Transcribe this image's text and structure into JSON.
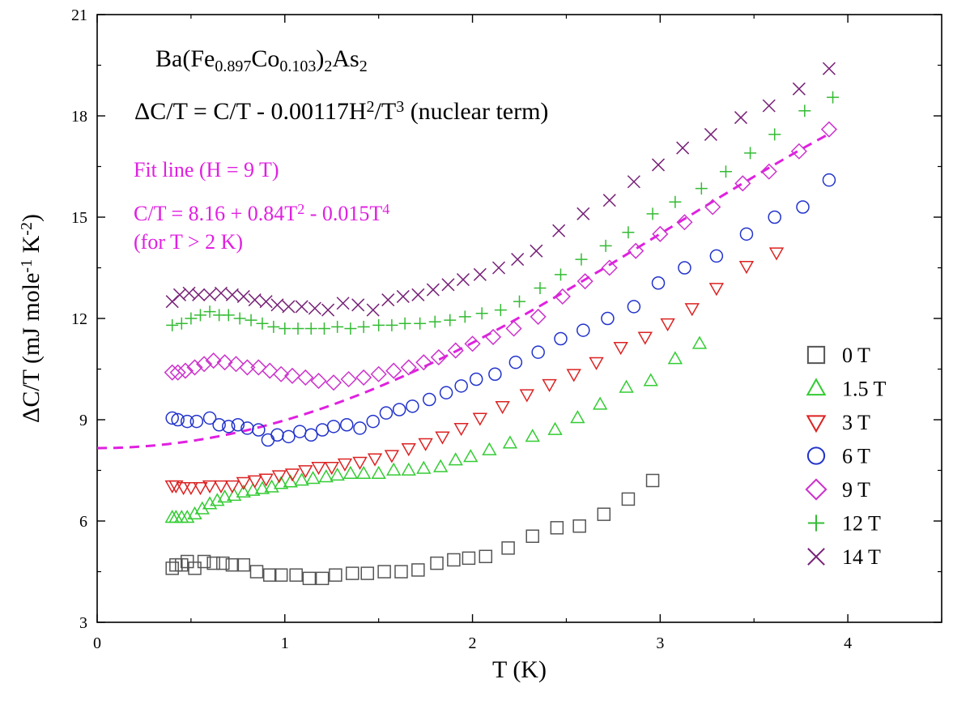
{
  "chart_data": {
    "type": "scatter",
    "title_lines": [
      {
        "parts": [
          {
            "t": "Ba(Fe"
          },
          {
            "t": "0.897",
            "sub": true
          },
          {
            "t": "Co"
          },
          {
            "t": "0.103",
            "sub": true
          },
          {
            "t": ")"
          },
          {
            "t": "2",
            "sub": true
          },
          {
            "t": "As"
          },
          {
            "t": "2",
            "sub": true
          }
        ]
      },
      {
        "parts": [
          {
            "t": "ΔC/T = C/T - 0.00117H"
          },
          {
            "t": "2",
            "sup": true
          },
          {
            "t": "/T"
          },
          {
            "t": "3",
            "sup": true
          },
          {
            "t": " (nuclear term)"
          }
        ]
      }
    ],
    "fit_annotation": {
      "color": "#e020e0",
      "lines": [
        {
          "parts": [
            {
              "t": "Fit line (H = 9 T)"
            }
          ]
        },
        {
          "parts": [
            {
              "t": "C/T = 8.16 + 0.84T"
            },
            {
              "t": "2",
              "sup": true
            },
            {
              "t": " - 0.015T"
            },
            {
              "t": "4",
              "sup": true
            }
          ]
        },
        {
          "parts": [
            {
              "t": "(for T > 2 K)"
            }
          ]
        }
      ]
    },
    "xlabel": "T (K)",
    "ylabel_parts": [
      {
        "t": "ΔC/T (mJ mole"
      },
      {
        "t": "-1",
        "sup": true
      },
      {
        "t": " K"
      },
      {
        "t": "-2",
        "sup": true
      },
      {
        "t": ")"
      }
    ],
    "xlim": [
      0,
      4.5
    ],
    "ylim": [
      3,
      21
    ],
    "xticks": [
      0,
      1,
      2,
      3,
      4
    ],
    "xtick_labels": [
      "0",
      "1",
      "2",
      "3",
      "4"
    ],
    "yticks": [
      3,
      6,
      9,
      12,
      15,
      18,
      21
    ],
    "ytick_labels": [
      "3",
      "6",
      "9",
      "12",
      "15",
      "18",
      "21"
    ],
    "grid": false,
    "legend_position": "right-middle",
    "fit_curve": {
      "a": 8.16,
      "b": 0.84,
      "c": -0.015,
      "x_range": [
        0,
        3.9
      ],
      "color": "#e020e0",
      "style": "dashed"
    },
    "series": [
      {
        "name": "0 T",
        "marker": "square",
        "color": "#555555",
        "points": [
          [
            0.4,
            4.6
          ],
          [
            0.42,
            4.7
          ],
          [
            0.45,
            4.7
          ],
          [
            0.48,
            4.8
          ],
          [
            0.52,
            4.6
          ],
          [
            0.57,
            4.8
          ],
          [
            0.62,
            4.75
          ],
          [
            0.67,
            4.75
          ],
          [
            0.72,
            4.7
          ],
          [
            0.78,
            4.7
          ],
          [
            0.85,
            4.5
          ],
          [
            0.92,
            4.4
          ],
          [
            0.98,
            4.4
          ],
          [
            1.06,
            4.4
          ],
          [
            1.13,
            4.3
          ],
          [
            1.2,
            4.3
          ],
          [
            1.27,
            4.4
          ],
          [
            1.36,
            4.45
          ],
          [
            1.44,
            4.45
          ],
          [
            1.53,
            4.5
          ],
          [
            1.62,
            4.5
          ],
          [
            1.71,
            4.55
          ],
          [
            1.81,
            4.75
          ],
          [
            1.9,
            4.85
          ],
          [
            1.98,
            4.9
          ],
          [
            2.07,
            4.95
          ],
          [
            2.19,
            5.2
          ],
          [
            2.32,
            5.55
          ],
          [
            2.45,
            5.8
          ],
          [
            2.57,
            5.85
          ],
          [
            2.7,
            6.2
          ],
          [
            2.83,
            6.65
          ],
          [
            2.96,
            7.2
          ]
        ]
      },
      {
        "name": "1.5 T",
        "marker": "triangle-up",
        "color": "#33cc33",
        "points": [
          [
            0.4,
            6.1
          ],
          [
            0.42,
            6.1
          ],
          [
            0.45,
            6.1
          ],
          [
            0.48,
            6.1
          ],
          [
            0.52,
            6.2
          ],
          [
            0.56,
            6.35
          ],
          [
            0.6,
            6.5
          ],
          [
            0.64,
            6.6
          ],
          [
            0.68,
            6.7
          ],
          [
            0.73,
            6.75
          ],
          [
            0.78,
            6.85
          ],
          [
            0.83,
            6.9
          ],
          [
            0.88,
            6.95
          ],
          [
            0.93,
            7.0
          ],
          [
            0.98,
            7.1
          ],
          [
            1.03,
            7.15
          ],
          [
            1.09,
            7.2
          ],
          [
            1.15,
            7.25
          ],
          [
            1.22,
            7.3
          ],
          [
            1.28,
            7.35
          ],
          [
            1.35,
            7.4
          ],
          [
            1.42,
            7.4
          ],
          [
            1.5,
            7.4
          ],
          [
            1.58,
            7.5
          ],
          [
            1.66,
            7.5
          ],
          [
            1.74,
            7.55
          ],
          [
            1.83,
            7.6
          ],
          [
            1.91,
            7.8
          ],
          [
            1.99,
            7.9
          ],
          [
            2.09,
            8.1
          ],
          [
            2.2,
            8.3
          ],
          [
            2.32,
            8.5
          ],
          [
            2.44,
            8.7
          ],
          [
            2.56,
            9.05
          ],
          [
            2.68,
            9.45
          ],
          [
            2.82,
            9.95
          ],
          [
            2.95,
            10.15
          ],
          [
            3.08,
            10.8
          ],
          [
            3.21,
            11.25
          ]
        ]
      },
      {
        "name": "3 T",
        "marker": "triangle-down",
        "color": "#dd2222",
        "points": [
          [
            0.4,
            7.05
          ],
          [
            0.42,
            7.05
          ],
          [
            0.46,
            7.0
          ],
          [
            0.5,
            7.0
          ],
          [
            0.55,
            7.0
          ],
          [
            0.6,
            7.05
          ],
          [
            0.66,
            7.05
          ],
          [
            0.72,
            7.05
          ],
          [
            0.78,
            7.15
          ],
          [
            0.84,
            7.2
          ],
          [
            0.9,
            7.25
          ],
          [
            0.97,
            7.35
          ],
          [
            1.04,
            7.4
          ],
          [
            1.11,
            7.5
          ],
          [
            1.18,
            7.6
          ],
          [
            1.25,
            7.6
          ],
          [
            1.32,
            7.7
          ],
          [
            1.4,
            7.75
          ],
          [
            1.48,
            7.85
          ],
          [
            1.57,
            7.95
          ],
          [
            1.66,
            8.15
          ],
          [
            1.75,
            8.3
          ],
          [
            1.84,
            8.5
          ],
          [
            1.94,
            8.75
          ],
          [
            2.04,
            9.05
          ],
          [
            2.16,
            9.4
          ],
          [
            2.29,
            9.75
          ],
          [
            2.41,
            10.05
          ],
          [
            2.54,
            10.35
          ],
          [
            2.66,
            10.7
          ],
          [
            2.79,
            11.15
          ],
          [
            2.92,
            11.45
          ],
          [
            3.04,
            11.85
          ],
          [
            3.17,
            12.3
          ],
          [
            3.3,
            12.9
          ],
          [
            3.46,
            13.55
          ],
          [
            3.62,
            13.95
          ]
        ]
      },
      {
        "name": "6 T",
        "marker": "circle",
        "color": "#2233cc",
        "points": [
          [
            0.4,
            9.05
          ],
          [
            0.43,
            9.0
          ],
          [
            0.48,
            8.95
          ],
          [
            0.53,
            8.95
          ],
          [
            0.6,
            9.05
          ],
          [
            0.65,
            8.85
          ],
          [
            0.7,
            8.8
          ],
          [
            0.75,
            8.85
          ],
          [
            0.8,
            8.75
          ],
          [
            0.86,
            8.7
          ],
          [
            0.91,
            8.4
          ],
          [
            0.96,
            8.55
          ],
          [
            1.02,
            8.5
          ],
          [
            1.08,
            8.65
          ],
          [
            1.14,
            8.55
          ],
          [
            1.2,
            8.7
          ],
          [
            1.26,
            8.8
          ],
          [
            1.33,
            8.85
          ],
          [
            1.4,
            8.75
          ],
          [
            1.47,
            8.95
          ],
          [
            1.54,
            9.2
          ],
          [
            1.61,
            9.3
          ],
          [
            1.68,
            9.4
          ],
          [
            1.77,
            9.6
          ],
          [
            1.86,
            9.8
          ],
          [
            1.94,
            10.0
          ],
          [
            2.02,
            10.2
          ],
          [
            2.12,
            10.35
          ],
          [
            2.23,
            10.7
          ],
          [
            2.35,
            11.0
          ],
          [
            2.47,
            11.4
          ],
          [
            2.59,
            11.65
          ],
          [
            2.72,
            12.0
          ],
          [
            2.86,
            12.35
          ],
          [
            2.99,
            13.05
          ],
          [
            3.13,
            13.5
          ],
          [
            3.3,
            13.85
          ],
          [
            3.46,
            14.5
          ],
          [
            3.61,
            15.0
          ],
          [
            3.76,
            15.3
          ],
          [
            3.9,
            16.1
          ]
        ]
      },
      {
        "name": "9 T",
        "marker": "diamond",
        "color": "#cc33cc",
        "points": [
          [
            0.4,
            10.4
          ],
          [
            0.43,
            10.4
          ],
          [
            0.47,
            10.45
          ],
          [
            0.52,
            10.55
          ],
          [
            0.57,
            10.65
          ],
          [
            0.62,
            10.75
          ],
          [
            0.68,
            10.7
          ],
          [
            0.74,
            10.65
          ],
          [
            0.8,
            10.55
          ],
          [
            0.86,
            10.55
          ],
          [
            0.92,
            10.45
          ],
          [
            0.98,
            10.35
          ],
          [
            1.04,
            10.3
          ],
          [
            1.11,
            10.25
          ],
          [
            1.18,
            10.15
          ],
          [
            1.26,
            10.1
          ],
          [
            1.34,
            10.2
          ],
          [
            1.42,
            10.25
          ],
          [
            1.5,
            10.35
          ],
          [
            1.58,
            10.45
          ],
          [
            1.66,
            10.55
          ],
          [
            1.74,
            10.7
          ],
          [
            1.82,
            10.85
          ],
          [
            1.91,
            11.05
          ],
          [
            2.0,
            11.25
          ],
          [
            2.11,
            11.45
          ],
          [
            2.22,
            11.7
          ],
          [
            2.35,
            12.05
          ],
          [
            2.48,
            12.65
          ],
          [
            2.6,
            13.1
          ],
          [
            2.73,
            13.5
          ],
          [
            2.87,
            14.0
          ],
          [
            3.0,
            14.5
          ],
          [
            3.13,
            14.85
          ],
          [
            3.28,
            15.3
          ],
          [
            3.44,
            16.0
          ],
          [
            3.58,
            16.35
          ],
          [
            3.74,
            16.95
          ],
          [
            3.9,
            17.6
          ]
        ]
      },
      {
        "name": "12 T",
        "marker": "plus",
        "color": "#33bb33",
        "points": [
          [
            0.4,
            11.8
          ],
          [
            0.45,
            11.85
          ],
          [
            0.5,
            12.0
          ],
          [
            0.55,
            12.1
          ],
          [
            0.6,
            12.2
          ],
          [
            0.65,
            12.1
          ],
          [
            0.7,
            12.1
          ],
          [
            0.76,
            12.0
          ],
          [
            0.82,
            11.95
          ],
          [
            0.88,
            11.85
          ],
          [
            0.94,
            11.75
          ],
          [
            1.0,
            11.7
          ],
          [
            1.07,
            11.7
          ],
          [
            1.14,
            11.7
          ],
          [
            1.21,
            11.7
          ],
          [
            1.28,
            11.75
          ],
          [
            1.35,
            11.7
          ],
          [
            1.42,
            11.75
          ],
          [
            1.5,
            11.8
          ],
          [
            1.57,
            11.8
          ],
          [
            1.64,
            11.85
          ],
          [
            1.72,
            11.85
          ],
          [
            1.8,
            11.9
          ],
          [
            1.88,
            11.95
          ],
          [
            1.96,
            12.05
          ],
          [
            2.05,
            12.15
          ],
          [
            2.15,
            12.25
          ],
          [
            2.25,
            12.5
          ],
          [
            2.36,
            12.9
          ],
          [
            2.47,
            13.3
          ],
          [
            2.58,
            13.75
          ],
          [
            2.71,
            14.15
          ],
          [
            2.83,
            14.55
          ],
          [
            2.96,
            15.1
          ],
          [
            3.08,
            15.45
          ],
          [
            3.22,
            15.85
          ],
          [
            3.35,
            16.35
          ],
          [
            3.48,
            16.9
          ],
          [
            3.61,
            17.45
          ],
          [
            3.77,
            18.15
          ],
          [
            3.92,
            18.55
          ]
        ]
      },
      {
        "name": "14 T",
        "marker": "cross",
        "color": "#772277",
        "points": [
          [
            0.4,
            12.5
          ],
          [
            0.44,
            12.7
          ],
          [
            0.49,
            12.75
          ],
          [
            0.54,
            12.7
          ],
          [
            0.6,
            12.7
          ],
          [
            0.66,
            12.75
          ],
          [
            0.72,
            12.7
          ],
          [
            0.78,
            12.65
          ],
          [
            0.84,
            12.55
          ],
          [
            0.9,
            12.5
          ],
          [
            0.96,
            12.4
          ],
          [
            1.02,
            12.35
          ],
          [
            1.09,
            12.35
          ],
          [
            1.16,
            12.3
          ],
          [
            1.23,
            12.25
          ],
          [
            1.31,
            12.45
          ],
          [
            1.39,
            12.4
          ],
          [
            1.47,
            12.25
          ],
          [
            1.55,
            12.55
          ],
          [
            1.63,
            12.65
          ],
          [
            1.71,
            12.7
          ],
          [
            1.79,
            12.85
          ],
          [
            1.87,
            13.0
          ],
          [
            1.95,
            13.15
          ],
          [
            2.04,
            13.3
          ],
          [
            2.14,
            13.5
          ],
          [
            2.24,
            13.75
          ],
          [
            2.34,
            14.0
          ],
          [
            2.46,
            14.6
          ],
          [
            2.59,
            15.1
          ],
          [
            2.73,
            15.5
          ],
          [
            2.86,
            16.05
          ],
          [
            2.99,
            16.55
          ],
          [
            3.12,
            17.05
          ],
          [
            3.27,
            17.45
          ],
          [
            3.43,
            17.95
          ],
          [
            3.58,
            18.3
          ],
          [
            3.74,
            18.8
          ],
          [
            3.9,
            19.4
          ]
        ]
      }
    ]
  }
}
